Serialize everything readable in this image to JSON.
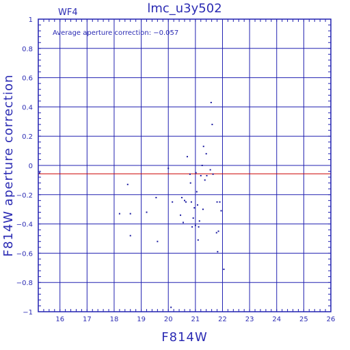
{
  "chart_data": {
    "type": "scatter",
    "title": "lmc_u3y502",
    "corner_label": "WF4",
    "annotation": "Average aperture correction: −0.057",
    "xlabel": "F814W",
    "ylabel": "F814W aperture correction",
    "xlim": [
      15.2,
      26
    ],
    "ylim": [
      -1,
      1
    ],
    "x_ticks": [
      16,
      17,
      18,
      19,
      20,
      21,
      22,
      23,
      24,
      25,
      26
    ],
    "y_ticks": [
      -1,
      -0.8,
      -0.6,
      -0.4,
      -0.2,
      0,
      0.2,
      0.4,
      0.6,
      0.8,
      1
    ],
    "y_tick_labels": [
      "−1",
      "−0.8",
      "−0.6",
      "−0.4",
      "−0.2",
      "0",
      "0.2",
      "0.4",
      "0.6",
      "0.8",
      "1"
    ],
    "grid": true,
    "reference_line": {
      "y": -0.057,
      "color": "#cc0000"
    },
    "marker_color": "#1a1aa0",
    "axis_color": "#2020b0",
    "points": [
      {
        "x": 15.25,
        "y": -0.05
      },
      {
        "x": 18.2,
        "y": -0.33
      },
      {
        "x": 18.5,
        "y": -0.13
      },
      {
        "x": 18.6,
        "y": -0.33
      },
      {
        "x": 18.6,
        "y": -0.48
      },
      {
        "x": 19.2,
        "y": -0.32
      },
      {
        "x": 19.55,
        "y": -0.22
      },
      {
        "x": 19.6,
        "y": -0.52
      },
      {
        "x": 20.0,
        "y": -0.02
      },
      {
        "x": 20.1,
        "y": -0.97
      },
      {
        "x": 20.15,
        "y": -0.25
      },
      {
        "x": 20.45,
        "y": -0.34
      },
      {
        "x": 20.5,
        "y": -0.22
      },
      {
        "x": 20.55,
        "y": -0.39
      },
      {
        "x": 20.6,
        "y": -0.24
      },
      {
        "x": 20.65,
        "y": -0.25
      },
      {
        "x": 20.7,
        "y": 0.06
      },
      {
        "x": 20.8,
        "y": -0.06
      },
      {
        "x": 20.82,
        "y": -0.12
      },
      {
        "x": 20.85,
        "y": -0.25
      },
      {
        "x": 20.88,
        "y": -0.42
      },
      {
        "x": 20.92,
        "y": -0.36
      },
      {
        "x": 20.96,
        "y": -0.29
      },
      {
        "x": 21.0,
        "y": -0.41
      },
      {
        "x": 21.02,
        "y": -0.05
      },
      {
        "x": 21.05,
        "y": -0.18
      },
      {
        "x": 21.08,
        "y": -0.27
      },
      {
        "x": 21.1,
        "y": -0.51
      },
      {
        "x": 21.12,
        "y": -0.42
      },
      {
        "x": 21.15,
        "y": -0.38
      },
      {
        "x": 21.2,
        "y": -0.07
      },
      {
        "x": 21.25,
        "y": 0.0
      },
      {
        "x": 21.28,
        "y": -0.3
      },
      {
        "x": 21.3,
        "y": 0.13
      },
      {
        "x": 21.35,
        "y": -0.1
      },
      {
        "x": 21.4,
        "y": 0.08
      },
      {
        "x": 21.42,
        "y": -0.07
      },
      {
        "x": 21.55,
        "y": -0.03
      },
      {
        "x": 21.58,
        "y": 0.43
      },
      {
        "x": 21.62,
        "y": 0.28
      },
      {
        "x": 21.65,
        "y": -0.06
      },
      {
        "x": 21.78,
        "y": -0.46
      },
      {
        "x": 21.8,
        "y": -0.25
      },
      {
        "x": 21.82,
        "y": -0.59
      },
      {
        "x": 21.85,
        "y": -0.45
      },
      {
        "x": 21.9,
        "y": -0.25
      },
      {
        "x": 21.95,
        "y": -0.31
      },
      {
        "x": 22.05,
        "y": -0.71
      }
    ]
  }
}
